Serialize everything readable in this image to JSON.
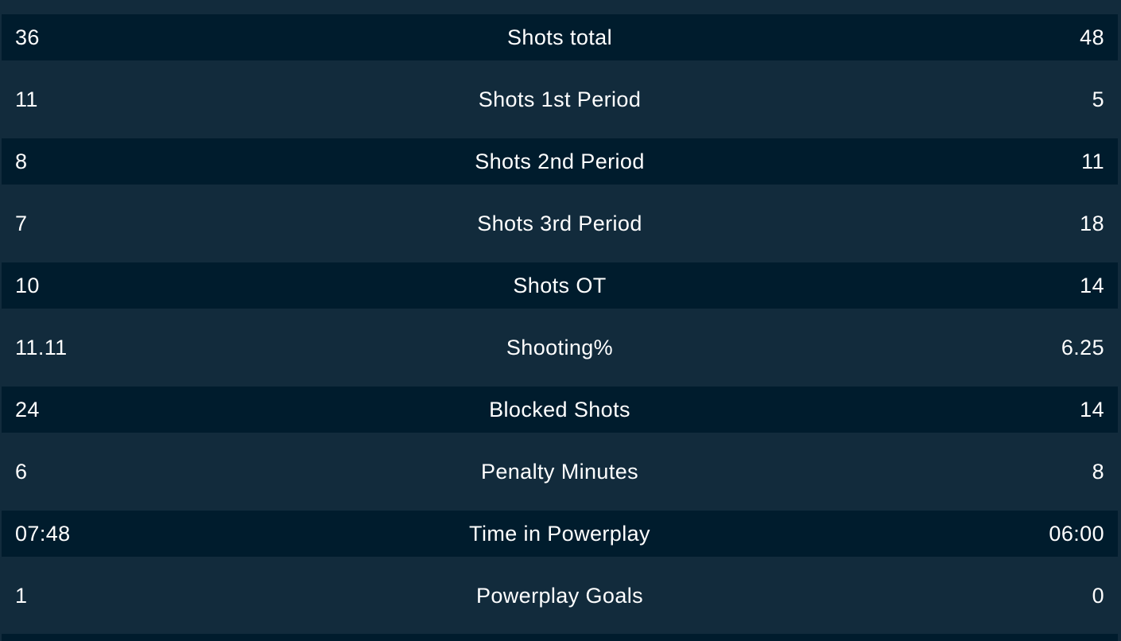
{
  "stats": {
    "rows": [
      {
        "home": "36",
        "label": "Shots total",
        "away": "48"
      },
      {
        "home": "11",
        "label": "Shots 1st Period",
        "away": "5"
      },
      {
        "home": "8",
        "label": "Shots 2nd Period",
        "away": "11"
      },
      {
        "home": "7",
        "label": "Shots 3rd Period",
        "away": "18"
      },
      {
        "home": "10",
        "label": "Shots OT",
        "away": "14"
      },
      {
        "home": "11.11",
        "label": "Shooting%",
        "away": "6.25"
      },
      {
        "home": "24",
        "label": "Blocked Shots",
        "away": "14"
      },
      {
        "home": "6",
        "label": "Penalty Minutes",
        "away": "8"
      },
      {
        "home": "07:48",
        "label": "Time in Powerplay",
        "away": "06:00"
      },
      {
        "home": "1",
        "label": "Powerplay Goals",
        "away": "0"
      }
    ]
  },
  "colors": {
    "background": "#122b3c",
    "row_dark": "#001c2d",
    "text": "#ffffff"
  }
}
